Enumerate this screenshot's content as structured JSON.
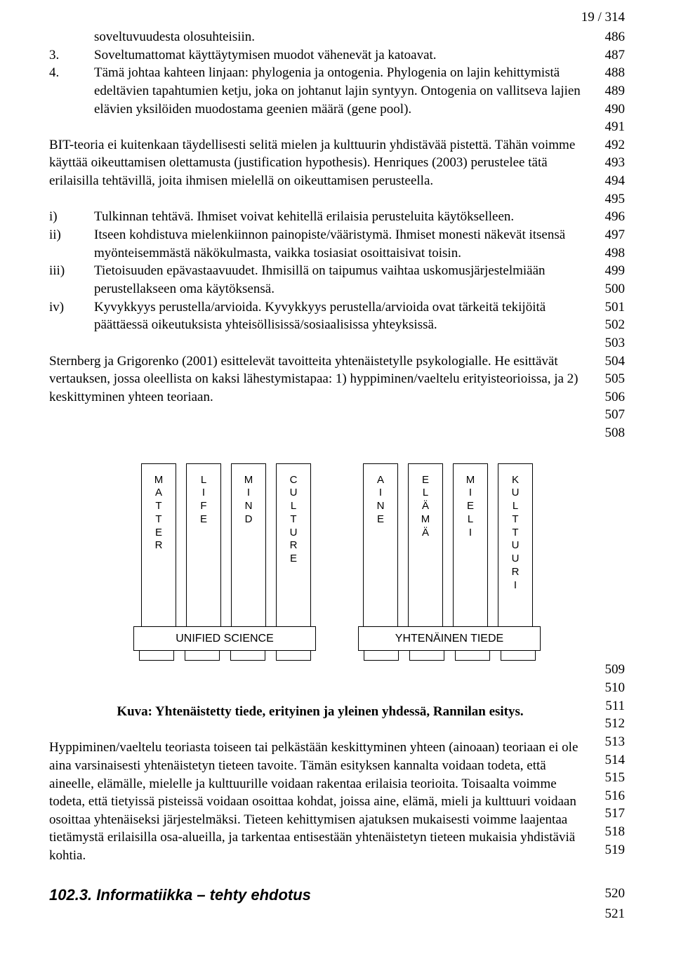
{
  "page_number": "19 / 314",
  "line_numbers": {
    "block1": [
      "486",
      "487",
      "488",
      "489",
      "490",
      "491",
      "492",
      "493",
      "494",
      "495",
      "496",
      "497",
      "498",
      "499",
      "500",
      "501",
      "502",
      "503",
      "504",
      "505",
      "506",
      "507",
      "508"
    ],
    "block2": [
      "509",
      "510",
      "511",
      "512",
      "513",
      "514",
      "515",
      "516",
      "517",
      "518",
      "519"
    ],
    "block3": [
      "520"
    ],
    "block4": [
      "521"
    ]
  },
  "items": {
    "pre1": "soveltuvuudesta olosuhteisiin.",
    "n3_num": "3.",
    "n3": "Soveltumattomat käyttäytymisen muodot vähenevät ja katoavat.",
    "n4_num": "4.",
    "n4": "Tämä johtaa kahteen linjaan: phylogenia ja ontogenia. Phylogenia on lajin kehittymistä edeltävien tapahtumien ketju, joka on johtanut lajin syntyyn. Ontogenia on vallitseva lajien elävien yksilöiden muodostama geenien määrä (gene pool)."
  },
  "para_bit": "BIT-teoria ei kuitenkaan täydellisesti selitä mielen ja kulttuurin yhdistävää pistettä. Tähän voimme käyttää oikeuttamisen olettamusta (justification hypothesis). Henriques (2003) perustelee tätä erilaisilla tehtävillä, joita ihmisen mielellä on oikeuttamisen perusteella.",
  "roman": {
    "i_num": "i)",
    "i": "Tulkinnan tehtävä. Ihmiset voivat kehitellä erilaisia perusteluita käytökselleen.",
    "ii_num": "ii)",
    "ii": "Itseen kohdistuva mielenkiinnon painopiste/vääristymä. Ihmiset monesti näkevät itsensä myönteisemmästä näkökulmasta, vaikka tosiasiat osoittaisivat toisin.",
    "iii_num": "iii)",
    "iii": "Tietoisuuden epävastaavuudet. Ihmisillä on taipumus vaihtaa uskomusjärjestelmiään perustellakseen oma käytöksensä.",
    "iv_num": "iv)",
    "iv": "Kyvykkyys perustella/arvioida. Kyvykkyys perustella/arvioida ovat tärkeitä tekijöitä päättäessä oikeutuksista yhteisöllisissä/sosiaalisissa yhteyksissä."
  },
  "para_sternberg": "Sternberg ja Grigorenko (2001) esittelevät tavoitteita yhtenäistetylle psykologialle. He esittävät vertauksen, jossa oleellista on kaksi lähestymistapaa: 1) hyppiminen/vaeltelu erityisteorioissa, ja 2) keskittyminen yhteen teoriaan.",
  "diagram": {
    "left": [
      "MATTER",
      "LIFE",
      "MIND",
      "CULTURE"
    ],
    "right": [
      "AINE",
      "ELÄMÄ",
      "MIELI",
      "KULTTUURI"
    ],
    "wide_left": "UNIFIED SCIENCE",
    "wide_right": "YHTENÄINEN TIEDE"
  },
  "caption": "Kuva: Yhtenäistetty tiede, erityinen ja yleinen yhdessä, Rannilan esitys.",
  "para_final": "Hyppiminen/vaeltelu teoriasta toiseen tai pelkästään keskittyminen yhteen (ainoaan) teoriaan ei ole aina varsinaisesti yhtenäistetyn tieteen tavoite. Tämän esityksen kannalta voidaan todeta, että aineelle, elämälle, mielelle ja kulttuurille voidaan rakentaa erilaisia teorioita. Toisaalta voimme todeta, että tietyissä pisteissä voidaan osoittaa kohdat, joissa aine, elämä, mieli ja kulttuuri voidaan osoittaa yhtenäiseksi järjestelmäksi. Tieteen kehittymisen ajatuksen mukaisesti voimme laajentaa tietämystä erilaisilla osa-alueilla, ja tarkentaa entisestään yhtenäistetyn tieteen mukaisia yhdistäviä kohtia.",
  "sec_heading": "102.3. Informatiikka – tehty ehdotus"
}
